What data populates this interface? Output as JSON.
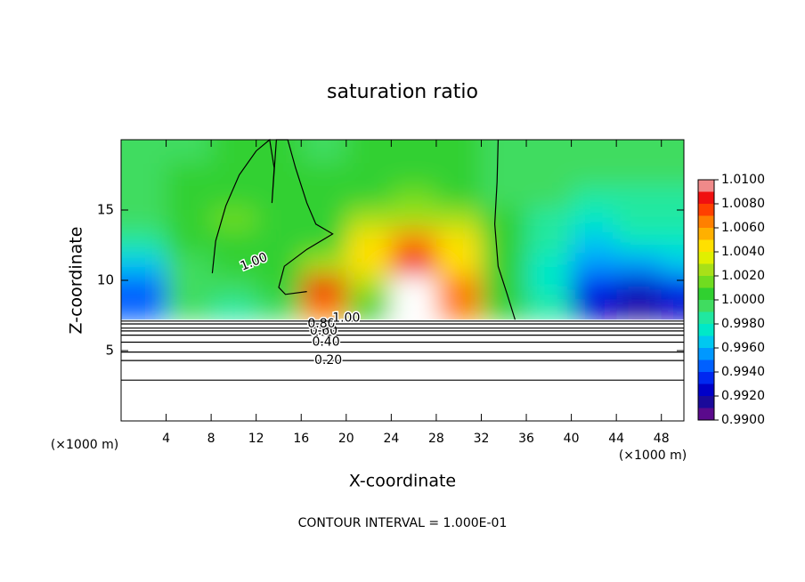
{
  "chart_data": {
    "type": "contour",
    "title": "saturation ratio",
    "x_label": "X-coordinate",
    "y_label": "Z-coordinate",
    "x_unit_left": "(×1000 m)",
    "x_unit_right": "(×1000 m)",
    "footnote": "CONTOUR INTERVAL = 1.000E-01",
    "xlim": [
      0,
      50
    ],
    "xticks": [
      4,
      8,
      12,
      16,
      20,
      24,
      28,
      32,
      36,
      40,
      44,
      48
    ],
    "ylim": [
      0,
      20
    ],
    "yticks": [
      5,
      10,
      15
    ],
    "field": {
      "x": [
        2,
        6,
        10,
        14,
        18,
        22,
        26,
        30,
        34,
        38,
        42,
        46,
        50
      ],
      "z": [
        8,
        9.6,
        11.2,
        12.8,
        14.4,
        16,
        17.6,
        19.2
      ],
      "values": [
        [
          0.994,
          0.999,
          0.9985,
          0.9995,
          1.007,
          1.0005,
          1.012,
          1.006,
          1.0005,
          0.998,
          0.992,
          0.9915,
          0.992
        ],
        [
          0.994,
          0.9995,
          0.9995,
          1.0002,
          1.008,
          1.002,
          1.012,
          1.006,
          1.001,
          0.997,
          0.993,
          0.992,
          0.993
        ],
        [
          0.996,
          0.9998,
          1.0003,
          1.0,
          1.002,
          1.004,
          1.009,
          1.005,
          1.0005,
          0.997,
          0.9955,
          0.9955,
          0.996
        ],
        [
          0.998,
          1.0,
          1.001,
          1.0,
          1.0005,
          1.004,
          1.007,
          1.004,
          1.0,
          0.998,
          0.9965,
          0.997,
          0.9975
        ],
        [
          0.999,
          1.0,
          1.0012,
          1.0003,
          1.0,
          1.002,
          1.003,
          1.002,
          1.0,
          0.9985,
          0.9975,
          0.998,
          0.998
        ],
        [
          0.9995,
          1.0,
          1.001,
          1.0003,
          1.0,
          1.001,
          1.0015,
          1.001,
          0.9995,
          0.999,
          0.9985,
          0.9985,
          0.9985
        ],
        [
          0.9995,
          1.0,
          1.0005,
          1.0003,
          1.0,
          1.0005,
          1.001,
          1.0005,
          0.9995,
          0.9993,
          0.999,
          0.999,
          0.999
        ],
        [
          0.9995,
          0.9998,
          1.0002,
          1.0002,
          0.9998,
          1.0,
          1.0003,
          1.0,
          0.9995,
          0.9995,
          0.9993,
          0.9993,
          0.9993
        ]
      ]
    },
    "colorbar": {
      "ylim": [
        0.99,
        1.01
      ],
      "colors": [
        "#5a0a8c",
        "#1a0a9a",
        "#0000c8",
        "#0028f0",
        "#0060ff",
        "#0098ff",
        "#00c8f0",
        "#00e8c8",
        "#20e8a0",
        "#40dc60",
        "#30d030",
        "#70dc20",
        "#a8e018",
        "#e0f000",
        "#ffe000",
        "#ffb000",
        "#ff8000",
        "#ff4000",
        "#f01010",
        "#f08a8a"
      ],
      "ticks": [
        {
          "value": 0.99,
          "label": "0.9900"
        },
        {
          "value": 0.992,
          "label": "0.9920"
        },
        {
          "value": 0.994,
          "label": "0.9940"
        },
        {
          "value": 0.996,
          "label": "0.9960"
        },
        {
          "value": 0.998,
          "label": "0.9980"
        },
        {
          "value": 1.0,
          "label": "1.0000"
        },
        {
          "value": 1.002,
          "label": "1.0020"
        },
        {
          "value": 1.004,
          "label": "1.0040"
        },
        {
          "value": 1.006,
          "label": "1.0060"
        },
        {
          "value": 1.008,
          "label": "1.0080"
        },
        {
          "value": 1.01,
          "label": "1.0100"
        }
      ]
    },
    "contours": [
      {
        "level": 0.1,
        "x": [
          0,
          50
        ],
        "z": [
          2.9,
          2.9
        ]
      },
      {
        "level": 0.2,
        "label": "0.20",
        "label_x": 18.4,
        "label_z": 4.3,
        "x": [
          0,
          50
        ],
        "z": [
          4.3,
          4.3
        ]
      },
      {
        "level": 0.3,
        "x": [
          0,
          50
        ],
        "z": [
          4.9,
          4.9
        ]
      },
      {
        "level": 0.4,
        "label": "0.40",
        "label_x": 18.2,
        "label_z": 5.6,
        "x": [
          0,
          50
        ],
        "z": [
          5.6,
          5.6
        ]
      },
      {
        "level": 0.5,
        "x": [
          0,
          50
        ],
        "z": [
          6.1,
          6.1
        ]
      },
      {
        "level": 0.6,
        "label": "0.60",
        "label_x": 18.0,
        "label_z": 6.4,
        "x": [
          0,
          50
        ],
        "z": [
          6.4,
          6.4
        ]
      },
      {
        "level": 0.7,
        "x": [
          0,
          50
        ],
        "z": [
          6.6,
          6.6
        ]
      },
      {
        "level": 0.8,
        "label": "0.80",
        "label_x": 17.8,
        "label_z": 6.9,
        "x": [
          0,
          50
        ],
        "z": [
          6.9,
          6.9
        ]
      },
      {
        "level": 0.9,
        "x": [
          0,
          50
        ],
        "z": [
          7.1,
          7.1
        ]
      },
      {
        "level": 1.0,
        "label": "1.00",
        "label_x": 11.8,
        "label_z": 11.3,
        "x": [
          8.1,
          8.4,
          9.3,
          10.5,
          12,
          13.2,
          13.6,
          13.4,
          13.8,
          14.8,
          15.5,
          16.5,
          17.3,
          18.8,
          16.5,
          14.5,
          14,
          14.6,
          16.5
        ],
        "z": [
          10.5,
          12.8,
          15.3,
          17.5,
          19.2,
          20,
          18,
          15.5,
          20,
          20,
          18,
          15.5,
          14,
          13.3,
          12.2,
          11,
          9.5,
          9,
          9.2
        ]
      },
      {
        "level": 1.0,
        "label": "1.00",
        "label_x": 20,
        "label_z": 7.3,
        "x": [
          33.5,
          33.4,
          33.2,
          33.5,
          34.3,
          35
        ],
        "z": [
          20,
          17,
          14,
          11,
          9,
          7.2
        ]
      }
    ]
  }
}
